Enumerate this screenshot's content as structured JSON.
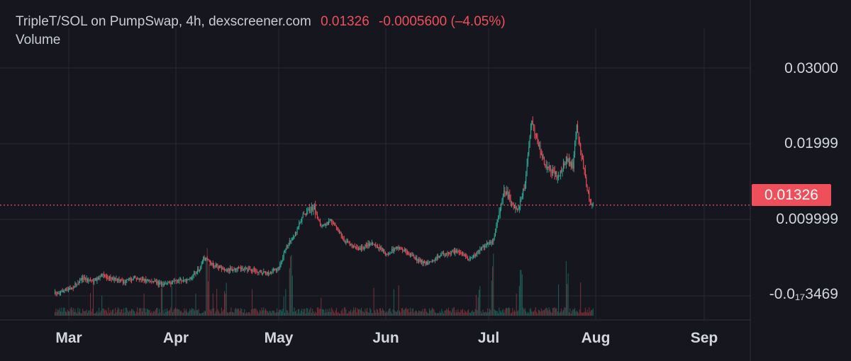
{
  "legend": {
    "pair": "TripleT/SOL on PumpSwap, 4h, dexscreener.com",
    "last": "0.01326",
    "change": "-0.0005600 (–4.05%)",
    "volume_label": "Volume"
  },
  "last_price_tag": "0.01326",
  "colors": {
    "up": "#2bb19a",
    "down": "#f0505c",
    "background": "#15161e",
    "grid": "#262833"
  },
  "chart_data": {
    "type": "line",
    "title": "TripleT/SOL on PumpSwap, 4h, dexscreener.com",
    "xlabel": "",
    "ylabel": "",
    "x_ticks": [
      "Mar",
      "Apr",
      "May",
      "Jun",
      "Jul",
      "Aug",
      "Sep"
    ],
    "y_ticks": [
      "0.03000",
      "0.01999",
      "0.009999",
      "-0.0₁₇3469"
    ],
    "ylim": [
      0,
      0.0333
    ],
    "last_price": 0.01326,
    "grid": true,
    "series": [
      {
        "values": [
          [
            "2025-02-25",
            0.0003
          ],
          [
            "2025-02-28",
            0.0008
          ],
          [
            "2025-03-02",
            0.0012
          ],
          [
            "2025-03-05",
            0.0026
          ],
          [
            "2025-03-08",
            0.0022
          ],
          [
            "2025-03-11",
            0.003
          ],
          [
            "2025-03-14",
            0.0025
          ],
          [
            "2025-03-17",
            0.002
          ],
          [
            "2025-03-20",
            0.0027
          ],
          [
            "2025-03-24",
            0.0022
          ],
          [
            "2025-03-28",
            0.0018
          ],
          [
            "2025-04-01",
            0.002
          ],
          [
            "2025-04-05",
            0.0025
          ],
          [
            "2025-04-08",
            0.004
          ],
          [
            "2025-04-09",
            0.0055
          ],
          [
            "2025-04-12",
            0.0045
          ],
          [
            "2025-04-16",
            0.0038
          ],
          [
            "2025-04-20",
            0.004
          ],
          [
            "2025-04-24",
            0.0036
          ],
          [
            "2025-04-28",
            0.0034
          ],
          [
            "2025-05-01",
            0.0042
          ],
          [
            "2025-05-03",
            0.0072
          ],
          [
            "2025-05-06",
            0.0095
          ],
          [
            "2025-05-08",
            0.012
          ],
          [
            "2025-05-11",
            0.013
          ],
          [
            "2025-05-13",
            0.01
          ],
          [
            "2025-05-16",
            0.011
          ],
          [
            "2025-05-20",
            0.008
          ],
          [
            "2025-05-24",
            0.0068
          ],
          [
            "2025-05-28",
            0.0078
          ],
          [
            "2025-06-01",
            0.0062
          ],
          [
            "2025-06-05",
            0.0072
          ],
          [
            "2025-06-09",
            0.0055
          ],
          [
            "2025-06-13",
            0.0047
          ],
          [
            "2025-06-17",
            0.006
          ],
          [
            "2025-06-21",
            0.0065
          ],
          [
            "2025-06-25",
            0.0053
          ],
          [
            "2025-06-29",
            0.0072
          ],
          [
            "2025-07-02",
            0.0082
          ],
          [
            "2025-07-03",
            0.011
          ],
          [
            "2025-07-05",
            0.0155
          ],
          [
            "2025-07-07",
            0.014
          ],
          [
            "2025-07-09",
            0.0125
          ],
          [
            "2025-07-11",
            0.016
          ],
          [
            "2025-07-13",
            0.0255
          ],
          [
            "2025-07-15",
            0.022
          ],
          [
            "2025-07-17",
            0.019
          ],
          [
            "2025-07-19",
            0.018
          ],
          [
            "2025-07-21",
            0.0175
          ],
          [
            "2025-07-23",
            0.02
          ],
          [
            "2025-07-25",
            0.019
          ],
          [
            "2025-07-26",
            0.025
          ],
          [
            "2025-07-27",
            0.022
          ],
          [
            "2025-07-29",
            0.016
          ],
          [
            "2025-07-30",
            0.0135
          ],
          [
            "2025-07-31",
            0.0133
          ]
        ]
      }
    ]
  }
}
